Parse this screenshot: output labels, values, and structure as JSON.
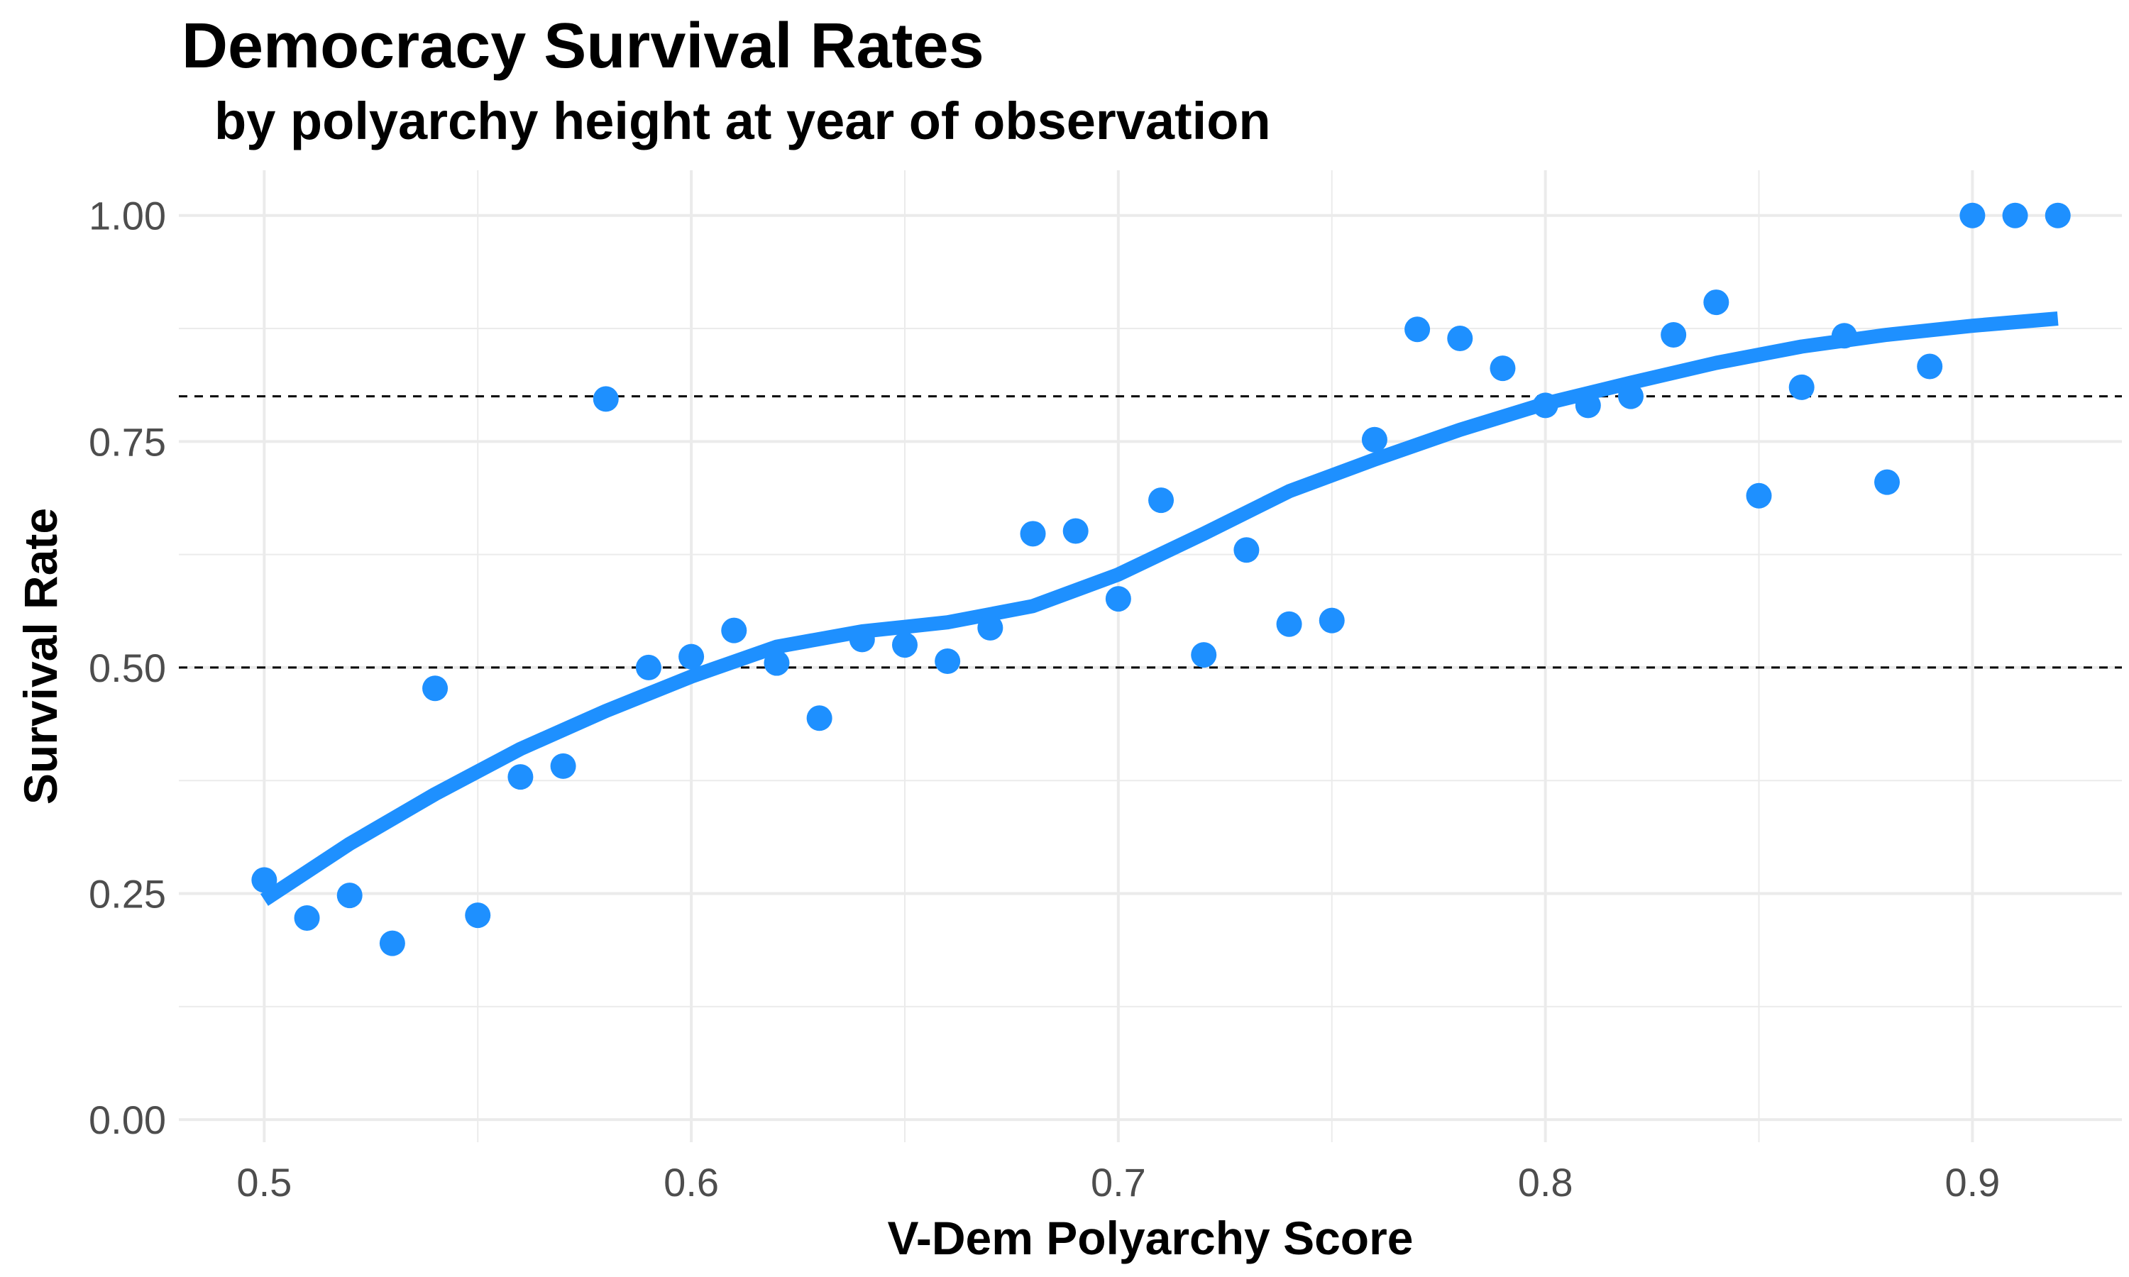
{
  "title": "Democracy Survival Rates",
  "subtitle": "by polyarchy height at year of observation",
  "colors": {
    "points": "#1E90FF",
    "smooth_line": "#1E90FF",
    "grid": "#EBEBEB",
    "reference_lines": "#000000",
    "tick_text": "#4D4D4D"
  },
  "chart_data": {
    "type": "scatter",
    "title": "Democracy Survival Rates",
    "subtitle": "by polyarchy height at year of observation",
    "xlabel": "V-Dem Polyarchy Score",
    "ylabel": "Survival Rate",
    "xlim": [
      0.48,
      0.935
    ],
    "ylim": [
      -0.025,
      1.05
    ],
    "x_ticks": [
      0.5,
      0.6,
      0.7,
      0.8,
      0.9
    ],
    "x_tick_labels": [
      "0.5",
      "0.6",
      "0.7",
      "0.8",
      "0.9"
    ],
    "y_ticks": [
      0,
      0.25,
      0.5,
      0.75,
      1.0
    ],
    "y_tick_labels": [
      "0.00",
      "0.25",
      "0.50",
      "0.75",
      "1.00"
    ],
    "grid": true,
    "legend": "none",
    "reference_lines": [
      {
        "axis": "y",
        "value": 0.5,
        "style": "dashed"
      },
      {
        "axis": "y",
        "value": 0.8,
        "style": "dashed"
      }
    ],
    "series": [
      {
        "type": "scatter",
        "x": [
          0.5,
          0.51,
          0.52,
          0.53,
          0.54,
          0.55,
          0.56,
          0.57,
          0.58,
          0.59,
          0.6,
          0.61,
          0.62,
          0.63,
          0.64,
          0.65,
          0.66,
          0.67,
          0.68,
          0.69,
          0.7,
          0.71,
          0.72,
          0.73,
          0.74,
          0.75,
          0.76,
          0.77,
          0.78,
          0.79,
          0.8,
          0.81,
          0.82,
          0.83,
          0.84,
          0.85,
          0.86,
          0.87,
          0.88,
          0.89,
          0.9,
          0.91,
          0.92
        ],
        "y": [
          0.265,
          0.223,
          0.248,
          0.195,
          0.477,
          0.226,
          0.379,
          0.391,
          0.797,
          0.5,
          0.512,
          0.541,
          0.505,
          0.444,
          0.531,
          0.525,
          0.507,
          0.544,
          0.648,
          0.651,
          0.576,
          0.685,
          0.514,
          0.63,
          0.548,
          0.552,
          0.752,
          0.874,
          0.864,
          0.831,
          0.79,
          0.79,
          0.8,
          0.868,
          0.904,
          0.69,
          0.81,
          0.867,
          0.705,
          0.833,
          1.0,
          1.0,
          1.0
        ]
      },
      {
        "type": "line",
        "x": [
          0.5,
          0.52,
          0.54,
          0.56,
          0.58,
          0.6,
          0.62,
          0.64,
          0.66,
          0.68,
          0.7,
          0.72,
          0.74,
          0.76,
          0.78,
          0.8,
          0.82,
          0.84,
          0.86,
          0.88,
          0.9,
          0.92
        ],
        "y": [
          0.243,
          0.305,
          0.36,
          0.41,
          0.452,
          0.49,
          0.523,
          0.54,
          0.55,
          0.568,
          0.603,
          0.648,
          0.695,
          0.73,
          0.763,
          0.792,
          0.815,
          0.837,
          0.855,
          0.868,
          0.878,
          0.886
        ]
      }
    ]
  }
}
